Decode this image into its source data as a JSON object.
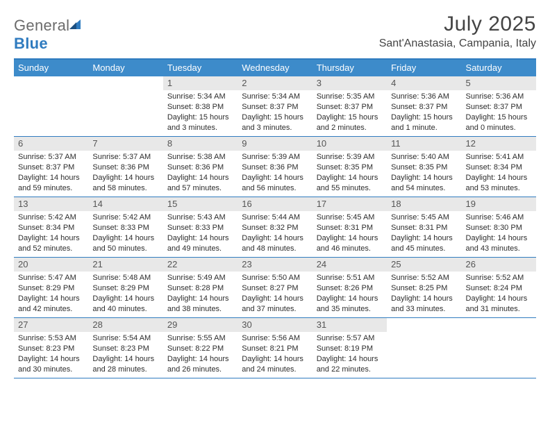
{
  "logo": {
    "text1": "General",
    "text2": "Blue"
  },
  "title": "July 2025",
  "subtitle": "Sant'Anastasia, Campania, Italy",
  "colors": {
    "header_bg": "#3d8bca",
    "border": "#2f7bbf",
    "daynum_bg": "#e8e8e8",
    "text": "#2c2c2c",
    "title": "#444444"
  },
  "daysOfWeek": [
    "Sunday",
    "Monday",
    "Tuesday",
    "Wednesday",
    "Thursday",
    "Friday",
    "Saturday"
  ],
  "weeks": [
    [
      {
        "empty": true
      },
      {
        "empty": true
      },
      {
        "num": "1",
        "sunrise": "Sunrise: 5:34 AM",
        "sunset": "Sunset: 8:38 PM",
        "daylight1": "Daylight: 15 hours",
        "daylight2": "and 3 minutes."
      },
      {
        "num": "2",
        "sunrise": "Sunrise: 5:34 AM",
        "sunset": "Sunset: 8:37 PM",
        "daylight1": "Daylight: 15 hours",
        "daylight2": "and 3 minutes."
      },
      {
        "num": "3",
        "sunrise": "Sunrise: 5:35 AM",
        "sunset": "Sunset: 8:37 PM",
        "daylight1": "Daylight: 15 hours",
        "daylight2": "and 2 minutes."
      },
      {
        "num": "4",
        "sunrise": "Sunrise: 5:36 AM",
        "sunset": "Sunset: 8:37 PM",
        "daylight1": "Daylight: 15 hours",
        "daylight2": "and 1 minute."
      },
      {
        "num": "5",
        "sunrise": "Sunrise: 5:36 AM",
        "sunset": "Sunset: 8:37 PM",
        "daylight1": "Daylight: 15 hours",
        "daylight2": "and 0 minutes."
      }
    ],
    [
      {
        "num": "6",
        "sunrise": "Sunrise: 5:37 AM",
        "sunset": "Sunset: 8:37 PM",
        "daylight1": "Daylight: 14 hours",
        "daylight2": "and 59 minutes."
      },
      {
        "num": "7",
        "sunrise": "Sunrise: 5:37 AM",
        "sunset": "Sunset: 8:36 PM",
        "daylight1": "Daylight: 14 hours",
        "daylight2": "and 58 minutes."
      },
      {
        "num": "8",
        "sunrise": "Sunrise: 5:38 AM",
        "sunset": "Sunset: 8:36 PM",
        "daylight1": "Daylight: 14 hours",
        "daylight2": "and 57 minutes."
      },
      {
        "num": "9",
        "sunrise": "Sunrise: 5:39 AM",
        "sunset": "Sunset: 8:36 PM",
        "daylight1": "Daylight: 14 hours",
        "daylight2": "and 56 minutes."
      },
      {
        "num": "10",
        "sunrise": "Sunrise: 5:39 AM",
        "sunset": "Sunset: 8:35 PM",
        "daylight1": "Daylight: 14 hours",
        "daylight2": "and 55 minutes."
      },
      {
        "num": "11",
        "sunrise": "Sunrise: 5:40 AM",
        "sunset": "Sunset: 8:35 PM",
        "daylight1": "Daylight: 14 hours",
        "daylight2": "and 54 minutes."
      },
      {
        "num": "12",
        "sunrise": "Sunrise: 5:41 AM",
        "sunset": "Sunset: 8:34 PM",
        "daylight1": "Daylight: 14 hours",
        "daylight2": "and 53 minutes."
      }
    ],
    [
      {
        "num": "13",
        "sunrise": "Sunrise: 5:42 AM",
        "sunset": "Sunset: 8:34 PM",
        "daylight1": "Daylight: 14 hours",
        "daylight2": "and 52 minutes."
      },
      {
        "num": "14",
        "sunrise": "Sunrise: 5:42 AM",
        "sunset": "Sunset: 8:33 PM",
        "daylight1": "Daylight: 14 hours",
        "daylight2": "and 50 minutes."
      },
      {
        "num": "15",
        "sunrise": "Sunrise: 5:43 AM",
        "sunset": "Sunset: 8:33 PM",
        "daylight1": "Daylight: 14 hours",
        "daylight2": "and 49 minutes."
      },
      {
        "num": "16",
        "sunrise": "Sunrise: 5:44 AM",
        "sunset": "Sunset: 8:32 PM",
        "daylight1": "Daylight: 14 hours",
        "daylight2": "and 48 minutes."
      },
      {
        "num": "17",
        "sunrise": "Sunrise: 5:45 AM",
        "sunset": "Sunset: 8:31 PM",
        "daylight1": "Daylight: 14 hours",
        "daylight2": "and 46 minutes."
      },
      {
        "num": "18",
        "sunrise": "Sunrise: 5:45 AM",
        "sunset": "Sunset: 8:31 PM",
        "daylight1": "Daylight: 14 hours",
        "daylight2": "and 45 minutes."
      },
      {
        "num": "19",
        "sunrise": "Sunrise: 5:46 AM",
        "sunset": "Sunset: 8:30 PM",
        "daylight1": "Daylight: 14 hours",
        "daylight2": "and 43 minutes."
      }
    ],
    [
      {
        "num": "20",
        "sunrise": "Sunrise: 5:47 AM",
        "sunset": "Sunset: 8:29 PM",
        "daylight1": "Daylight: 14 hours",
        "daylight2": "and 42 minutes."
      },
      {
        "num": "21",
        "sunrise": "Sunrise: 5:48 AM",
        "sunset": "Sunset: 8:29 PM",
        "daylight1": "Daylight: 14 hours",
        "daylight2": "and 40 minutes."
      },
      {
        "num": "22",
        "sunrise": "Sunrise: 5:49 AM",
        "sunset": "Sunset: 8:28 PM",
        "daylight1": "Daylight: 14 hours",
        "daylight2": "and 38 minutes."
      },
      {
        "num": "23",
        "sunrise": "Sunrise: 5:50 AM",
        "sunset": "Sunset: 8:27 PM",
        "daylight1": "Daylight: 14 hours",
        "daylight2": "and 37 minutes."
      },
      {
        "num": "24",
        "sunrise": "Sunrise: 5:51 AM",
        "sunset": "Sunset: 8:26 PM",
        "daylight1": "Daylight: 14 hours",
        "daylight2": "and 35 minutes."
      },
      {
        "num": "25",
        "sunrise": "Sunrise: 5:52 AM",
        "sunset": "Sunset: 8:25 PM",
        "daylight1": "Daylight: 14 hours",
        "daylight2": "and 33 minutes."
      },
      {
        "num": "26",
        "sunrise": "Sunrise: 5:52 AM",
        "sunset": "Sunset: 8:24 PM",
        "daylight1": "Daylight: 14 hours",
        "daylight2": "and 31 minutes."
      }
    ],
    [
      {
        "num": "27",
        "sunrise": "Sunrise: 5:53 AM",
        "sunset": "Sunset: 8:23 PM",
        "daylight1": "Daylight: 14 hours",
        "daylight2": "and 30 minutes."
      },
      {
        "num": "28",
        "sunrise": "Sunrise: 5:54 AM",
        "sunset": "Sunset: 8:23 PM",
        "daylight1": "Daylight: 14 hours",
        "daylight2": "and 28 minutes."
      },
      {
        "num": "29",
        "sunrise": "Sunrise: 5:55 AM",
        "sunset": "Sunset: 8:22 PM",
        "daylight1": "Daylight: 14 hours",
        "daylight2": "and 26 minutes."
      },
      {
        "num": "30",
        "sunrise": "Sunrise: 5:56 AM",
        "sunset": "Sunset: 8:21 PM",
        "daylight1": "Daylight: 14 hours",
        "daylight2": "and 24 minutes."
      },
      {
        "num": "31",
        "sunrise": "Sunrise: 5:57 AM",
        "sunset": "Sunset: 8:19 PM",
        "daylight1": "Daylight: 14 hours",
        "daylight2": "and 22 minutes."
      },
      {
        "empty": true
      },
      {
        "empty": true
      }
    ]
  ]
}
